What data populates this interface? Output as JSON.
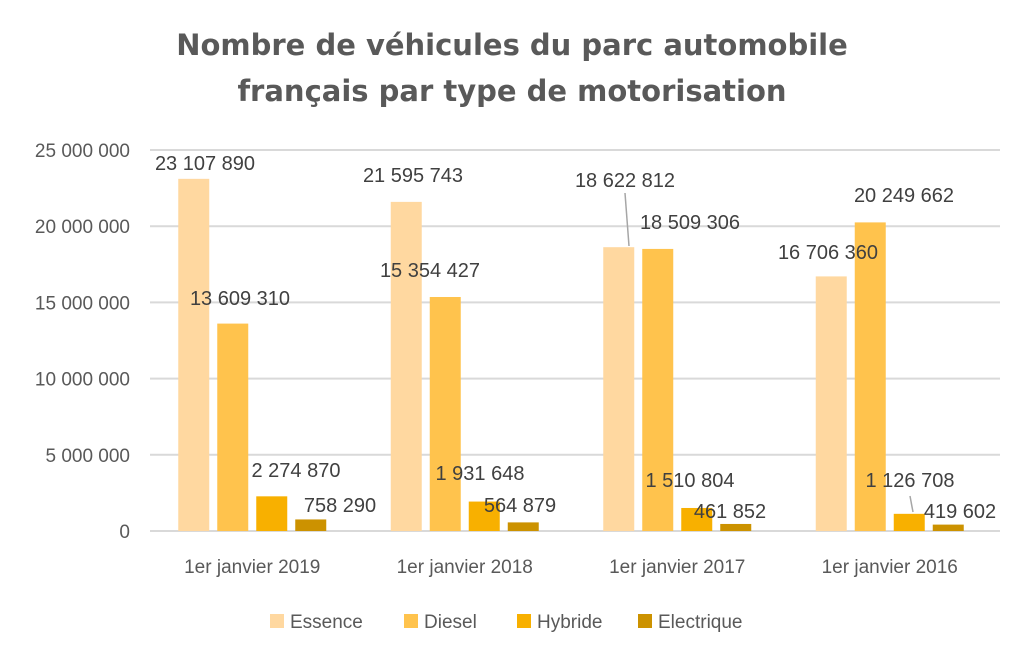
{
  "chart_data": {
    "type": "bar",
    "title": "Nombre de véhicules du parc automobile français par type de motorisation",
    "title_lines": [
      "Nombre de véhicules du parc automobile",
      "français par type de motorisation"
    ],
    "categories": [
      "1er janvier 2019",
      "1er janvier 2018",
      "1er janvier 2017",
      "1er janvier 2016"
    ],
    "series": [
      {
        "name": "Essence",
        "color": "#FFD8A0",
        "values": [
          23107890,
          21595743,
          18622812,
          16706360
        ],
        "labels": [
          "23 107 890",
          "21 595 743",
          "18 622 812",
          "16 706 360"
        ]
      },
      {
        "name": "Diesel",
        "color": "#FFC34D",
        "values": [
          13609310,
          15354427,
          18509306,
          20249662
        ],
        "labels": [
          "13 609 310",
          "15 354 427",
          "18 509 306",
          "20 249 662"
        ]
      },
      {
        "name": "Hybride",
        "color": "#F8B000",
        "values": [
          2274870,
          1931648,
          1510804,
          1126708
        ],
        "labels": [
          "2 274 870",
          "1 931 648",
          "1 510 804",
          "1 126 708"
        ]
      },
      {
        "name": "Electrique",
        "color": "#CC9200",
        "values": [
          758290,
          564879,
          461852,
          419602
        ],
        "labels": [
          "758 290",
          "564 879",
          "461 852",
          "419 602"
        ]
      }
    ],
    "ylim": [
      0,
      25000000
    ],
    "yticks": [
      "0",
      "5 000 000",
      "10 000 000",
      "15 000 000",
      "20 000 000",
      "25 000 000"
    ],
    "xlabel": "",
    "ylabel": "",
    "grid": true,
    "legend": "bottom"
  }
}
